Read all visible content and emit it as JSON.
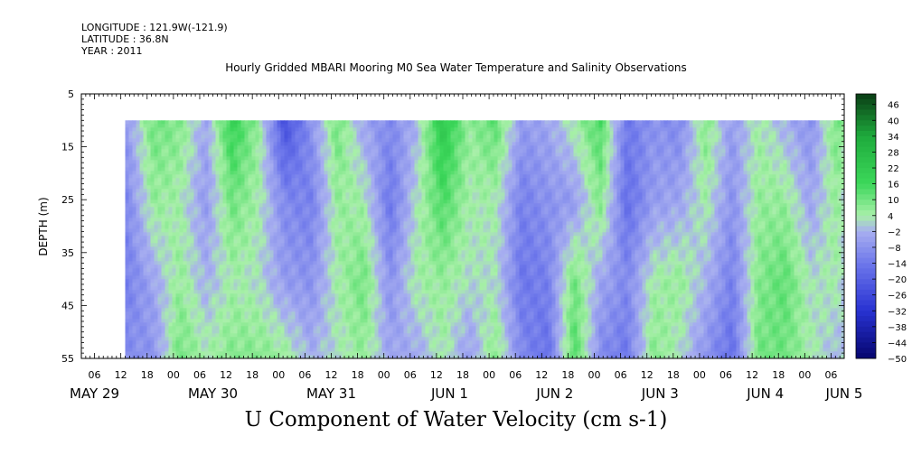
{
  "header": {
    "longitude": "LONGITUDE : 121.9W(-121.9)",
    "latitude": "LATITUDE : 36.8N",
    "year": "YEAR : 2011"
  },
  "chart_data": {
    "type": "heatmap",
    "title": "Hourly Gridded MBARI Mooring M0 Sea Water Temperature and Salinity Observations",
    "xlabel": "",
    "ylabel": "DEPTH (m)",
    "footer_label": "U Component of Water Velocity (cm s-1)",
    "ylim": [
      5,
      55
    ],
    "y_inverted": true,
    "y_ticks": [
      5,
      15,
      25,
      35,
      45,
      55
    ],
    "x_hour_ticks": [
      "06",
      "12",
      "18",
      "00",
      "06",
      "12",
      "18",
      "00",
      "06",
      "12",
      "18",
      "00",
      "06",
      "12",
      "18",
      "00",
      "06",
      "12",
      "18",
      "00",
      "06",
      "12",
      "18",
      "00",
      "06",
      "12",
      "18",
      "00",
      "06"
    ],
    "x_day_labels": [
      "MAY 29",
      "MAY 30",
      "MAY 31",
      "JUN 1",
      "JUN 2",
      "JUN 3",
      "JUN 4",
      "JUN 5"
    ],
    "data_start": "MAY 29 13:00",
    "data_end": "JUN 5 09:00",
    "depth_top_data": 10,
    "depth_bottom_data": 55,
    "colorbar_levels": [
      "46",
      "40",
      "34",
      "28",
      "22",
      "16",
      "10",
      "4",
      "-2",
      "-8",
      "-14",
      "-20",
      "-26",
      "-32",
      "-38",
      "-44",
      "-50"
    ],
    "colorbar_range": [
      -50,
      50
    ],
    "colors": {
      "strong_positive": "#0a3d14",
      "positive": "#2ec24a",
      "weak_positive": "#a8f0a8",
      "weak_negative": "#a7adf0",
      "negative": "#5a68e6",
      "strong_negative": "#06066e"
    },
    "column_profiles": [
      {
        "hour": 0,
        "u": [
          -6,
          -10,
          -12,
          -9
        ]
      },
      {
        "hour": 6,
        "u": [
          10,
          6,
          -4,
          -8
        ]
      },
      {
        "hour": 12,
        "u": [
          8,
          4,
          6,
          10
        ]
      },
      {
        "hour": 18,
        "u": [
          -4,
          -6,
          -2,
          4
        ]
      },
      {
        "hour": 24,
        "u": [
          18,
          10,
          4,
          8
        ]
      },
      {
        "hour": 30,
        "u": [
          6,
          4,
          2,
          8
        ]
      },
      {
        "hour": 36,
        "u": [
          -24,
          -10,
          -6,
          6
        ]
      },
      {
        "hour": 42,
        "u": [
          -8,
          -12,
          -8,
          -2
        ]
      },
      {
        "hour": 48,
        "u": [
          10,
          6,
          4,
          2
        ]
      },
      {
        "hour": 54,
        "u": [
          -4,
          4,
          10,
          6
        ]
      },
      {
        "hour": 60,
        "u": [
          -10,
          -14,
          -8,
          -4
        ]
      },
      {
        "hour": 66,
        "u": [
          -2,
          2,
          4,
          -4
        ]
      },
      {
        "hour": 72,
        "u": [
          22,
          14,
          6,
          4
        ]
      },
      {
        "hour": 78,
        "u": [
          6,
          4,
          2,
          -6
        ]
      },
      {
        "hour": 84,
        "u": [
          12,
          4,
          2,
          8
        ]
      },
      {
        "hour": 90,
        "u": [
          -6,
          -12,
          -14,
          -10
        ]
      },
      {
        "hour": 96,
        "u": [
          -4,
          -8,
          -12,
          -16
        ]
      },
      {
        "hour": 102,
        "u": [
          4,
          -6,
          10,
          14
        ]
      },
      {
        "hour": 108,
        "u": [
          14,
          8,
          -4,
          -10
        ]
      },
      {
        "hour": 114,
        "u": [
          -14,
          -16,
          -10,
          -14
        ]
      },
      {
        "hour": 120,
        "u": [
          -8,
          -6,
          4,
          8
        ]
      },
      {
        "hour": 126,
        "u": [
          -10,
          -4,
          6,
          2
        ]
      },
      {
        "hour": 132,
        "u": [
          8,
          4,
          -2,
          -8
        ]
      },
      {
        "hour": 138,
        "u": [
          -6,
          -8,
          -12,
          -16
        ]
      },
      {
        "hour": 144,
        "u": [
          4,
          6,
          8,
          10
        ]
      },
      {
        "hour": 150,
        "u": [
          -2,
          6,
          12,
          10
        ]
      },
      {
        "hour": 156,
        "u": [
          -8,
          -4,
          2,
          4
        ]
      },
      {
        "hour": 162,
        "u": [
          10,
          6,
          4,
          -2
        ]
      },
      {
        "hour": 168,
        "u": [
          -6,
          -10,
          -12,
          8
        ]
      }
    ]
  }
}
